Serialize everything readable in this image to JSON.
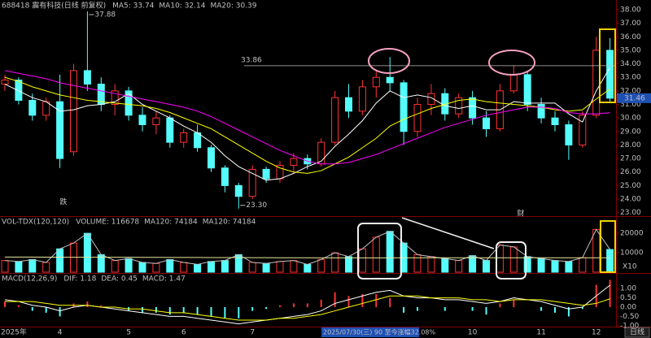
{
  "chart_data": [
    {
      "type": "candlestick",
      "title": "688418 震有科技(日线 前复权)",
      "categories": [
        "2025年",
        null,
        null,
        null,
        "4",
        null,
        null,
        null,
        null,
        "5",
        null,
        null,
        null,
        "6",
        null,
        null,
        null,
        null,
        "7",
        null,
        null,
        null,
        null,
        null,
        null,
        null,
        null,
        null,
        null,
        null,
        null,
        null,
        null,
        null,
        "10",
        null,
        null,
        null,
        null,
        "11",
        null,
        null,
        null,
        "12",
        null
      ],
      "open": [
        32.5,
        32.8,
        31.3,
        30.2,
        31.2,
        27.5,
        33.5,
        32.5,
        31.0,
        32.0,
        30.2,
        29.5,
        30.0,
        28.2,
        28.9,
        27.8,
        26.3,
        25.0,
        24.2,
        26.2,
        25.5,
        26.5,
        27.0,
        26.6,
        28.2,
        31.5,
        30.5,
        32.3,
        33.0,
        32.6,
        29.0,
        31.0,
        31.8,
        30.3,
        31.5,
        30.0,
        29.2,
        32.0,
        33.2,
        31.0,
        30.0,
        29.5,
        28.0,
        30.2,
        35.0
      ],
      "high": [
        33.2,
        33.0,
        31.8,
        31.5,
        33.2,
        34.0,
        37.88,
        33.0,
        32.5,
        32.3,
        30.8,
        30.5,
        30.2,
        29.2,
        29.5,
        28.0,
        26.5,
        25.2,
        26.5,
        26.4,
        26.8,
        27.4,
        27.3,
        28.5,
        32.0,
        32.5,
        32.8,
        33.5,
        34.5,
        32.8,
        31.5,
        32.5,
        32.2,
        31.8,
        32.0,
        30.5,
        32.5,
        33.9,
        33.4,
        31.5,
        30.5,
        29.8,
        30.5,
        36.0,
        35.9
      ],
      "low": [
        32.0,
        31.0,
        29.8,
        29.8,
        26.3,
        27.2,
        32.0,
        30.5,
        30.2,
        29.8,
        29.0,
        28.8,
        27.8,
        27.8,
        27.5,
        26.0,
        24.5,
        23.3,
        24.0,
        25.2,
        25.2,
        26.0,
        26.2,
        26.4,
        28.0,
        30.0,
        30.2,
        31.5,
        32.0,
        28.0,
        28.6,
        30.2,
        29.8,
        30.0,
        29.5,
        28.6,
        29.0,
        31.8,
        30.5,
        29.6,
        29.0,
        26.9,
        27.8,
        30.0,
        31.2
      ],
      "close": [
        32.8,
        31.3,
        30.2,
        31.2,
        27.0,
        33.5,
        32.5,
        31.0,
        32.0,
        30.2,
        29.5,
        30.0,
        28.2,
        28.9,
        27.8,
        26.3,
        25.0,
        24.2,
        26.2,
        25.5,
        26.5,
        27.0,
        26.6,
        28.2,
        31.5,
        30.5,
        32.3,
        33.0,
        32.6,
        29.0,
        31.0,
        31.8,
        30.3,
        31.5,
        30.0,
        29.2,
        32.0,
        33.2,
        31.0,
        30.0,
        29.5,
        28.0,
        30.2,
        35.0,
        31.46
      ],
      "up_color": "#ff3232",
      "down_color": "#54fcfc",
      "series": [
        {
          "name": "MA5: 33.74",
          "color": "#ffffff",
          "values": [
            32.5,
            32.0,
            31.5,
            31.2,
            30.5,
            30.6,
            30.9,
            31.0,
            31.2,
            31.8,
            31.0,
            30.5,
            30.0,
            29.4,
            28.9,
            28.2,
            27.2,
            26.4,
            25.9,
            25.4,
            25.5,
            25.9,
            26.4,
            26.8,
            27.9,
            28.8,
            29.8,
            31.1,
            32.0,
            31.5,
            31.7,
            31.5,
            30.9,
            30.7,
            30.9,
            30.6,
            30.6,
            31.2,
            31.1,
            31.1,
            31.1,
            30.3,
            29.7,
            32.0,
            33.74
          ]
        },
        {
          "name": "MA10: 32.14",
          "color": "#ffff00",
          "values": [
            33.0,
            32.7,
            32.3,
            32.0,
            31.7,
            31.5,
            31.3,
            31.2,
            31.1,
            31.0,
            30.9,
            30.7,
            30.4,
            30.0,
            29.6,
            29.2,
            28.6,
            28.0,
            27.4,
            26.8,
            26.3,
            26.0,
            25.9,
            26.1,
            26.6,
            27.1,
            27.8,
            28.5,
            29.4,
            29.9,
            30.3,
            30.7,
            31.0,
            31.3,
            31.4,
            31.2,
            31.1,
            31.0,
            30.9,
            30.8,
            30.6,
            30.5,
            30.6,
            31.4,
            32.14
          ]
        },
        {
          "name": "MA20: 30.39",
          "color": "#ff00ff",
          "values": [
            33.5,
            33.3,
            33.1,
            32.9,
            32.6,
            32.4,
            32.2,
            32.0,
            31.8,
            31.6,
            31.4,
            31.2,
            31.0,
            30.8,
            30.5,
            30.1,
            29.6,
            29.1,
            28.6,
            28.1,
            27.6,
            27.2,
            26.8,
            26.6,
            26.6,
            26.7,
            27.0,
            27.3,
            27.7,
            28.1,
            28.5,
            28.9,
            29.3,
            29.6,
            29.9,
            30.2,
            30.4,
            30.6,
            30.8,
            30.8,
            30.7,
            30.4,
            30.3,
            30.3,
            30.39
          ]
        }
      ],
      "ylim": [
        22.8,
        38.72
      ],
      "yticks": [
        {
          "value": 23,
          "label": "23.00"
        },
        {
          "value": 24,
          "label": "24.00"
        },
        {
          "value": 25,
          "label": "25.00"
        },
        {
          "value": 26,
          "label": "26.00"
        },
        {
          "value": 27,
          "label": "27.00"
        },
        {
          "value": 28,
          "label": "28.00"
        },
        {
          "value": 29,
          "label": "29.00"
        },
        {
          "value": 30,
          "label": "30.00"
        },
        {
          "value": 31,
          "label": "31.00"
        },
        {
          "value": 32,
          "label": "32.00"
        },
        {
          "value": 33,
          "label": "33.00"
        },
        {
          "value": 34,
          "label": "34.00"
        },
        {
          "value": 35,
          "label": "35.00"
        },
        {
          "value": 36,
          "label": "36.00"
        },
        {
          "value": 37,
          "label": "37.00"
        },
        {
          "value": 38,
          "label": "38.00"
        }
      ],
      "level_line": 33.86,
      "high_label": "37.88",
      "low_label": "23.30",
      "markers": [
        "跌",
        "财"
      ],
      "cursor_label": "2025/07/30(三) 90 至今涨幅32.08%",
      "period_button": "日线"
    },
    {
      "type": "bar",
      "title": "VOL-TDX(120,120)",
      "series": [
        {
          "name": "VOLUME: 116678",
          "color": "#c0c0c0",
          "values": [
            6000,
            5500,
            6500,
            5000,
            12000,
            15000,
            20000,
            9000,
            6000,
            7000,
            5000,
            4500,
            6500,
            5000,
            4000,
            5500,
            6000,
            9000,
            5000,
            4500,
            5500,
            6000,
            4000,
            6500,
            10000,
            8000,
            12000,
            18000,
            21000,
            15000,
            9000,
            8000,
            7000,
            6000,
            8500,
            6000,
            14000,
            13000,
            8000,
            7000,
            6000,
            5500,
            7500,
            22000,
            11667.8
          ]
        },
        {
          "name": "MA120: 74184",
          "color": "#e8e8a0",
          "values": [
            7800,
            7780,
            7760,
            7740,
            7720,
            7700,
            7700,
            7690,
            7680,
            7660,
            7640,
            7620,
            7600,
            7580,
            7560,
            7540,
            7520,
            7500,
            7480,
            7460,
            7440,
            7420,
            7400,
            7380,
            7370,
            7360,
            7360,
            7370,
            7390,
            7400,
            7400,
            7400,
            7400,
            7400,
            7400,
            7400,
            7400,
            7400,
            7400,
            7400,
            7400,
            7400,
            7400,
            7410,
            7418.4
          ]
        },
        {
          "name": "MA120: 74184",
          "color": "#ff00ff"
        }
      ],
      "ylim": [
        0,
        28000
      ],
      "yticks": [
        20000,
        10000
      ],
      "unit_label": "X10"
    },
    {
      "type": "macd",
      "title": "MACD(12,26,9)",
      "series": [
        {
          "name": "DIF: 1.18",
          "color": "#ffffff",
          "values": [
            0.4,
            0.3,
            0.1,
            0.0,
            -0.2,
            0.0,
            0.1,
            0.0,
            -0.1,
            -0.2,
            -0.3,
            -0.4,
            -0.5,
            -0.5,
            -0.6,
            -0.7,
            -0.8,
            -0.9,
            -0.8,
            -0.7,
            -0.6,
            -0.5,
            -0.4,
            -0.2,
            0.2,
            0.4,
            0.6,
            0.8,
            0.9,
            0.6,
            0.5,
            0.5,
            0.4,
            0.4,
            0.3,
            0.2,
            0.3,
            0.5,
            0.4,
            0.3,
            0.1,
            -0.1,
            0.0,
            0.6,
            1.18
          ]
        },
        {
          "name": "DEA: 0.45",
          "color": "#ffff00",
          "values": [
            0.3,
            0.3,
            0.3,
            0.2,
            0.1,
            0.1,
            0.1,
            0.0,
            0.0,
            -0.1,
            -0.1,
            -0.2,
            -0.3,
            -0.3,
            -0.4,
            -0.5,
            -0.6,
            -0.7,
            -0.7,
            -0.7,
            -0.6,
            -0.6,
            -0.5,
            -0.4,
            -0.2,
            0.0,
            0.2,
            0.4,
            0.6,
            0.6,
            0.6,
            0.5,
            0.5,
            0.5,
            0.4,
            0.4,
            0.3,
            0.4,
            0.4,
            0.4,
            0.3,
            0.2,
            0.1,
            0.2,
            0.45
          ]
        },
        {
          "name": "MACD: 1.47",
          "color": "#ff00ff",
          "values": [
            0.3,
            0.1,
            -0.2,
            -0.3,
            -0.5,
            0.2,
            0.3,
            0.1,
            0.0,
            -0.2,
            -0.3,
            -0.3,
            -0.4,
            -0.3,
            -0.4,
            -0.5,
            -0.6,
            -0.6,
            -0.2,
            -0.1,
            0.1,
            0.2,
            0.2,
            0.4,
            0.8,
            0.6,
            0.7,
            0.7,
            0.5,
            -0.3,
            -0.2,
            0.0,
            -0.2,
            0.0,
            -0.2,
            -0.4,
            0.2,
            0.4,
            0.0,
            -0.2,
            -0.3,
            -0.5,
            -0.1,
            1.2,
            1.47
          ]
        }
      ],
      "ylim": [
        -1.05,
        1.75
      ],
      "yticks": [
        {
          "value": 1,
          "label": "1.00"
        },
        {
          "value": 0.5,
          "label": "0.50"
        },
        {
          "value": 0,
          "label": "0.00"
        },
        {
          "value": -0.5,
          "label": "-0.50"
        },
        {
          "value": -1,
          "label": "-1.00"
        }
      ]
    }
  ]
}
